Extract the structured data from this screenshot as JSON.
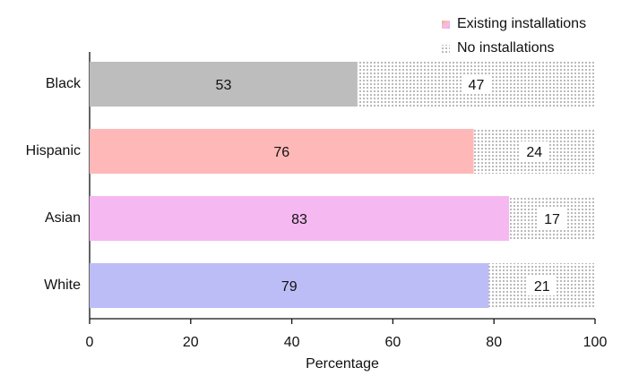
{
  "chart_data": {
    "type": "stacked_barh",
    "categories": [
      "Black",
      "Hispanic",
      "Asian",
      "White"
    ],
    "series": [
      {
        "name": "Existing installations",
        "colors": [
          "#bdbdbd",
          "#ffb8b8",
          "#f5b8f0",
          "#bcbcf7"
        ],
        "values": [
          53,
          76,
          83,
          79
        ]
      },
      {
        "name": "No installations",
        "color": "#8a8a8a",
        "values": [
          47,
          24,
          17,
          21
        ]
      }
    ],
    "xlabel": "Percentage",
    "xlim": [
      0,
      100
    ],
    "xticks": [
      0,
      20,
      40,
      60,
      80,
      100
    ],
    "legend": "top-right"
  }
}
